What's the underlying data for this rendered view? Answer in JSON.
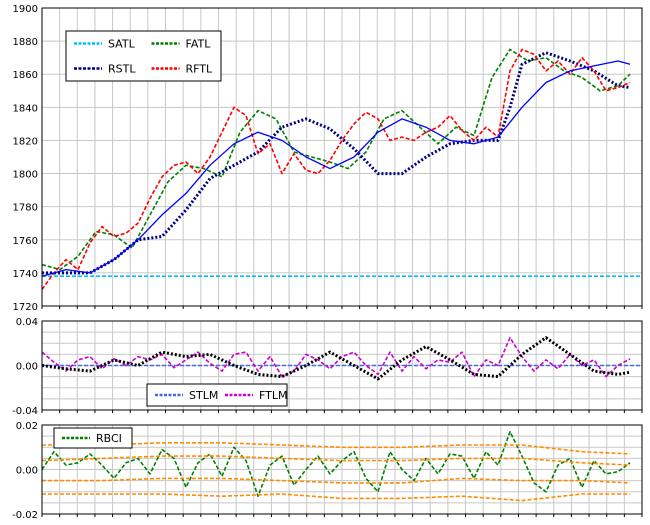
{
  "chart_data": [
    {
      "type": "line",
      "panel": "price",
      "ylim": [
        1720,
        1900
      ],
      "yticks": [
        1720,
        1740,
        1760,
        1780,
        1800,
        1820,
        1840,
        1860,
        1880,
        1900
      ],
      "x_range": [
        0,
        100
      ],
      "grid": true,
      "legend_position": "top-left",
      "series": [
        {
          "name": "SATL",
          "color": "#00bfff",
          "style": "dashed",
          "x": [
            0,
            100
          ],
          "y": [
            1738,
            1738
          ]
        },
        {
          "name": "FATL",
          "color": "#008000",
          "style": "dashed",
          "x": [
            0,
            3,
            6,
            9,
            12,
            15,
            18,
            21,
            24,
            27,
            30,
            33,
            36,
            39,
            42,
            45,
            48,
            51,
            54,
            57,
            60,
            63,
            66,
            69,
            72,
            75,
            78,
            81,
            84,
            87,
            90,
            93,
            96,
            98
          ],
          "y": [
            1745,
            1742,
            1750,
            1765,
            1763,
            1755,
            1775,
            1795,
            1805,
            1803,
            1798,
            1825,
            1838,
            1833,
            1813,
            1810,
            1807,
            1803,
            1813,
            1833,
            1838,
            1828,
            1818,
            1828,
            1823,
            1858,
            1875,
            1868,
            1870,
            1862,
            1858,
            1850,
            1853,
            1860
          ]
        },
        {
          "name": "RSTL",
          "color": "#000080",
          "style": "dotted",
          "x": [
            0,
            4,
            8,
            12,
            16,
            20,
            24,
            28,
            32,
            36,
            40,
            44,
            48,
            52,
            56,
            60,
            64,
            68,
            72,
            76,
            78,
            80,
            84,
            88,
            92,
            96,
            98
          ],
          "y": [
            1740,
            1740,
            1740,
            1748,
            1760,
            1762,
            1778,
            1797,
            1805,
            1813,
            1828,
            1833,
            1827,
            1815,
            1800,
            1800,
            1810,
            1818,
            1820,
            1820,
            1840,
            1866,
            1873,
            1868,
            1862,
            1853,
            1852
          ]
        },
        {
          "name": "RFTL",
          "color": "#ff0000",
          "style": "dashed",
          "x": [
            0,
            2,
            4,
            6,
            8,
            10,
            12,
            14,
            16,
            18,
            20,
            22,
            24,
            26,
            28,
            30,
            32,
            34,
            36,
            38,
            40,
            42,
            44,
            46,
            48,
            50,
            52,
            54,
            56,
            58,
            60,
            62,
            64,
            66,
            68,
            70,
            72,
            74,
            76,
            78,
            80,
            82,
            84,
            86,
            88,
            90,
            92,
            94,
            96,
            98
          ],
          "y": [
            1730,
            1740,
            1748,
            1742,
            1758,
            1768,
            1762,
            1764,
            1770,
            1785,
            1798,
            1805,
            1807,
            1800,
            1810,
            1825,
            1840,
            1835,
            1812,
            1818,
            1800,
            1812,
            1802,
            1800,
            1808,
            1820,
            1830,
            1837,
            1833,
            1820,
            1822,
            1820,
            1825,
            1828,
            1835,
            1826,
            1820,
            1828,
            1822,
            1862,
            1875,
            1872,
            1862,
            1868,
            1860,
            1870,
            1862,
            1850,
            1852,
            1855
          ]
        },
        {
          "name": "",
          "color": "#0000ff",
          "style": "solid",
          "x": [
            0,
            4,
            8,
            12,
            16,
            20,
            24,
            28,
            32,
            36,
            40,
            44,
            48,
            52,
            56,
            60,
            64,
            68,
            72,
            76,
            80,
            84,
            88,
            92,
            96,
            98
          ],
          "y": [
            1738,
            1742,
            1740,
            1748,
            1760,
            1775,
            1788,
            1805,
            1818,
            1825,
            1820,
            1810,
            1803,
            1810,
            1825,
            1833,
            1828,
            1820,
            1818,
            1822,
            1840,
            1855,
            1862,
            1865,
            1868,
            1866
          ]
        }
      ]
    },
    {
      "type": "line",
      "panel": "oscillator",
      "ylim": [
        -0.04,
        0.04
      ],
      "yticks": [
        -0.04,
        0.0,
        0.04
      ],
      "ytick_labels": [
        "-0.04",
        "0.00",
        "0.04"
      ],
      "x_range": [
        0,
        100
      ],
      "grid": true,
      "legend_position": "bottom-center",
      "series": [
        {
          "name": "STLM",
          "color": "#4169e1",
          "style": "dashed",
          "x": [
            0,
            100
          ],
          "y": [
            0.0,
            0.0
          ]
        },
        {
          "name": "FTLM",
          "color": "#cc00cc",
          "style": "dashed",
          "x": [
            0,
            2,
            4,
            6,
            8,
            10,
            12,
            14,
            16,
            18,
            20,
            22,
            24,
            26,
            28,
            30,
            32,
            34,
            36,
            38,
            40,
            42,
            44,
            46,
            48,
            50,
            52,
            54,
            56,
            58,
            60,
            62,
            64,
            66,
            68,
            70,
            72,
            74,
            76,
            78,
            80,
            82,
            84,
            86,
            88,
            90,
            92,
            94,
            96,
            98
          ],
          "y": [
            0.012,
            0.003,
            -0.005,
            0.005,
            0.008,
            -0.003,
            0.006,
            0.0,
            0.008,
            0.005,
            0.01,
            -0.002,
            0.005,
            0.012,
            0.002,
            -0.005,
            0.01,
            0.012,
            -0.005,
            0.008,
            -0.01,
            -0.005,
            0.01,
            0.005,
            -0.003,
            0.008,
            0.012,
            0.0,
            -0.008,
            0.012,
            -0.005,
            0.008,
            -0.003,
            0.005,
            0.003,
            0.012,
            -0.01,
            0.005,
            0.0,
            0.025,
            0.008,
            -0.005,
            0.005,
            -0.003,
            0.01,
            0.0,
            0.005,
            -0.01,
            0.0,
            0.006
          ]
        },
        {
          "name": "",
          "color": "#000000",
          "style": "dotted",
          "x": [
            0,
            4,
            8,
            12,
            16,
            20,
            24,
            28,
            32,
            36,
            40,
            44,
            48,
            52,
            56,
            60,
            64,
            68,
            72,
            76,
            80,
            84,
            88,
            92,
            96,
            98
          ],
          "y": [
            0.0,
            -0.003,
            -0.005,
            0.005,
            0.0,
            0.012,
            0.008,
            0.01,
            0.0,
            -0.008,
            -0.01,
            0.0,
            0.012,
            0.0,
            -0.012,
            0.005,
            0.017,
            0.005,
            -0.008,
            -0.01,
            0.01,
            0.025,
            0.01,
            -0.005,
            -0.008,
            -0.006
          ]
        }
      ]
    },
    {
      "type": "line",
      "panel": "rbci",
      "ylim": [
        -0.02,
        0.02
      ],
      "yticks": [
        -0.02,
        0.0,
        0.02
      ],
      "ytick_labels": [
        "-0.02",
        "0.00",
        "0.02"
      ],
      "x_range": [
        0,
        100
      ],
      "grid": true,
      "legend_position": "top-left",
      "series": [
        {
          "name": "RBCI",
          "color": "#008000",
          "style": "dashed",
          "x": [
            0,
            2,
            4,
            6,
            8,
            10,
            12,
            14,
            16,
            18,
            20,
            22,
            24,
            26,
            28,
            30,
            32,
            34,
            36,
            38,
            40,
            42,
            44,
            46,
            48,
            50,
            52,
            54,
            56,
            58,
            60,
            62,
            64,
            66,
            68,
            70,
            72,
            74,
            76,
            78,
            80,
            82,
            84,
            86,
            88,
            90,
            92,
            94,
            96,
            98
          ],
          "y": [
            0.0,
            0.008,
            0.002,
            0.003,
            0.007,
            0.002,
            -0.004,
            0.003,
            0.005,
            -0.002,
            0.009,
            0.005,
            -0.008,
            0.003,
            0.007,
            -0.003,
            0.01,
            0.004,
            -0.012,
            0.002,
            0.006,
            -0.007,
            0.0,
            0.006,
            -0.002,
            0.004,
            0.008,
            -0.004,
            -0.01,
            0.008,
            0.0,
            -0.005,
            0.005,
            -0.002,
            0.007,
            0.006,
            -0.004,
            0.008,
            0.002,
            0.017,
            0.006,
            -0.006,
            -0.01,
            0.002,
            0.005,
            -0.008,
            0.004,
            -0.002,
            -0.001,
            0.003
          ]
        },
        {
          "name": "",
          "color": "#ff8c00",
          "style": "dashed",
          "x": [
            0,
            10,
            20,
            30,
            40,
            50,
            60,
            70,
            80,
            90,
            98
          ],
          "y": [
            0.011,
            0.011,
            0.012,
            0.012,
            0.011,
            0.01,
            0.01,
            0.011,
            0.011,
            0.008,
            0.007
          ]
        },
        {
          "name": "",
          "color": "#ff8c00",
          "style": "dashed",
          "x": [
            0,
            10,
            20,
            30,
            40,
            50,
            60,
            70,
            80,
            90,
            98
          ],
          "y": [
            0.004,
            0.005,
            0.006,
            0.006,
            0.005,
            0.004,
            0.004,
            0.005,
            0.005,
            0.003,
            0.002
          ]
        },
        {
          "name": "",
          "color": "#ff8c00",
          "style": "dashed",
          "x": [
            0,
            10,
            20,
            30,
            40,
            50,
            60,
            70,
            80,
            90,
            98
          ],
          "y": [
            -0.005,
            -0.005,
            -0.004,
            -0.004,
            -0.005,
            -0.006,
            -0.006,
            -0.004,
            -0.005,
            -0.005,
            -0.006
          ]
        },
        {
          "name": "",
          "color": "#ff8c00",
          "style": "dashed",
          "x": [
            0,
            10,
            20,
            30,
            40,
            50,
            60,
            70,
            80,
            90,
            98
          ],
          "y": [
            -0.011,
            -0.011,
            -0.011,
            -0.012,
            -0.011,
            -0.013,
            -0.013,
            -0.012,
            -0.014,
            -0.011,
            -0.011
          ]
        }
      ]
    }
  ]
}
